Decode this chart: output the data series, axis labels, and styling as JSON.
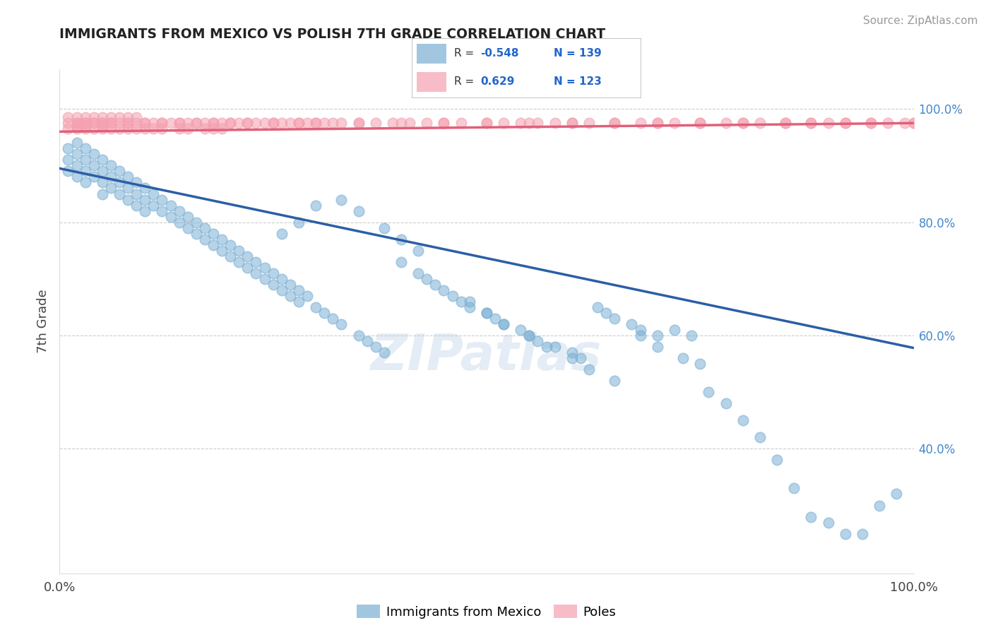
{
  "title": "IMMIGRANTS FROM MEXICO VS POLISH 7TH GRADE CORRELATION CHART",
  "source_text": "Source: ZipAtlas.com",
  "ylabel": "7th Grade",
  "xlim": [
    0.0,
    1.0
  ],
  "ylim": [
    0.18,
    1.07
  ],
  "blue_R": -0.548,
  "blue_N": 139,
  "pink_R": 0.629,
  "pink_N": 123,
  "blue_color": "#7BAFD4",
  "pink_color": "#F4A0B0",
  "blue_line_color": "#2B5EA7",
  "pink_line_color": "#E0607A",
  "blue_label": "Immigrants from Mexico",
  "pink_label": "Poles",
  "right_yticks": [
    0.4,
    0.6,
    0.8,
    1.0
  ],
  "right_ytick_labels": [
    "40.0%",
    "60.0%",
    "80.0%",
    "100.0%"
  ],
  "blue_line_x0": 0.0,
  "blue_line_x1": 1.0,
  "blue_line_y0": 0.895,
  "blue_line_y1": 0.578,
  "pink_line_x0": 0.0,
  "pink_line_x1": 1.0,
  "pink_line_y0": 0.96,
  "pink_line_y1": 0.975,
  "watermark": "ZIPatlas",
  "background_color": "#ffffff",
  "grid_color": "#cccccc",
  "blue_scatter_x": [
    0.01,
    0.01,
    0.01,
    0.02,
    0.02,
    0.02,
    0.02,
    0.03,
    0.03,
    0.03,
    0.03,
    0.04,
    0.04,
    0.04,
    0.05,
    0.05,
    0.05,
    0.05,
    0.06,
    0.06,
    0.06,
    0.07,
    0.07,
    0.07,
    0.08,
    0.08,
    0.08,
    0.09,
    0.09,
    0.09,
    0.1,
    0.1,
    0.1,
    0.11,
    0.11,
    0.12,
    0.12,
    0.13,
    0.13,
    0.14,
    0.14,
    0.15,
    0.15,
    0.16,
    0.16,
    0.17,
    0.17,
    0.18,
    0.18,
    0.19,
    0.19,
    0.2,
    0.2,
    0.21,
    0.21,
    0.22,
    0.22,
    0.23,
    0.23,
    0.24,
    0.24,
    0.25,
    0.25,
    0.26,
    0.26,
    0.27,
    0.27,
    0.28,
    0.28,
    0.29,
    0.3,
    0.31,
    0.32,
    0.33,
    0.35,
    0.36,
    0.37,
    0.38,
    0.4,
    0.42,
    0.43,
    0.44,
    0.46,
    0.47,
    0.48,
    0.5,
    0.51,
    0.52,
    0.54,
    0.55,
    0.56,
    0.58,
    0.6,
    0.61,
    0.63,
    0.64,
    0.65,
    0.67,
    0.68,
    0.7,
    0.72,
    0.74,
    0.75,
    0.76,
    0.78,
    0.8,
    0.82,
    0.84,
    0.86,
    0.88,
    0.9,
    0.92,
    0.94,
    0.96,
    0.98,
    0.45,
    0.48,
    0.5,
    0.52,
    0.55,
    0.57,
    0.6,
    0.62,
    0.65,
    0.68,
    0.7,
    0.73,
    0.38,
    0.4,
    0.42,
    0.35,
    0.33,
    0.3,
    0.28,
    0.26
  ],
  "blue_scatter_y": [
    0.93,
    0.91,
    0.89,
    0.94,
    0.92,
    0.9,
    0.88,
    0.93,
    0.91,
    0.89,
    0.87,
    0.92,
    0.9,
    0.88,
    0.91,
    0.89,
    0.87,
    0.85,
    0.9,
    0.88,
    0.86,
    0.89,
    0.87,
    0.85,
    0.88,
    0.86,
    0.84,
    0.87,
    0.85,
    0.83,
    0.86,
    0.84,
    0.82,
    0.85,
    0.83,
    0.84,
    0.82,
    0.83,
    0.81,
    0.82,
    0.8,
    0.81,
    0.79,
    0.8,
    0.78,
    0.79,
    0.77,
    0.78,
    0.76,
    0.77,
    0.75,
    0.76,
    0.74,
    0.75,
    0.73,
    0.74,
    0.72,
    0.73,
    0.71,
    0.72,
    0.7,
    0.71,
    0.69,
    0.7,
    0.68,
    0.69,
    0.67,
    0.68,
    0.66,
    0.67,
    0.65,
    0.64,
    0.63,
    0.62,
    0.6,
    0.59,
    0.58,
    0.57,
    0.73,
    0.71,
    0.7,
    0.69,
    0.67,
    0.66,
    0.65,
    0.64,
    0.63,
    0.62,
    0.61,
    0.6,
    0.59,
    0.58,
    0.57,
    0.56,
    0.65,
    0.64,
    0.63,
    0.62,
    0.61,
    0.6,
    0.61,
    0.6,
    0.55,
    0.5,
    0.48,
    0.45,
    0.42,
    0.38,
    0.33,
    0.28,
    0.27,
    0.25,
    0.25,
    0.3,
    0.32,
    0.68,
    0.66,
    0.64,
    0.62,
    0.6,
    0.58,
    0.56,
    0.54,
    0.52,
    0.6,
    0.58,
    0.56,
    0.79,
    0.77,
    0.75,
    0.82,
    0.84,
    0.83,
    0.8,
    0.78
  ],
  "pink_scatter_x": [
    0.01,
    0.01,
    0.01,
    0.02,
    0.02,
    0.02,
    0.02,
    0.03,
    0.03,
    0.03,
    0.03,
    0.04,
    0.04,
    0.04,
    0.05,
    0.05,
    0.05,
    0.05,
    0.06,
    0.06,
    0.06,
    0.07,
    0.07,
    0.07,
    0.08,
    0.08,
    0.08,
    0.09,
    0.09,
    0.09,
    0.1,
    0.1,
    0.11,
    0.11,
    0.12,
    0.12,
    0.13,
    0.14,
    0.14,
    0.15,
    0.15,
    0.16,
    0.17,
    0.17,
    0.18,
    0.18,
    0.19,
    0.19,
    0.2,
    0.21,
    0.22,
    0.23,
    0.24,
    0.25,
    0.26,
    0.27,
    0.28,
    0.29,
    0.3,
    0.31,
    0.33,
    0.35,
    0.37,
    0.39,
    0.41,
    0.43,
    0.45,
    0.47,
    0.5,
    0.52,
    0.54,
    0.56,
    0.58,
    0.6,
    0.62,
    0.65,
    0.68,
    0.7,
    0.72,
    0.75,
    0.78,
    0.8,
    0.82,
    0.85,
    0.88,
    0.9,
    0.92,
    0.95,
    0.97,
    0.99,
    1.0,
    1.0,
    0.95,
    0.92,
    0.88,
    0.85,
    0.8,
    0.75,
    0.7,
    0.65,
    0.6,
    0.55,
    0.5,
    0.45,
    0.4,
    0.35,
    0.32,
    0.3,
    0.28,
    0.25,
    0.22,
    0.2,
    0.18,
    0.16,
    0.14,
    0.12,
    0.1,
    0.08,
    0.06,
    0.05,
    0.04,
    0.03,
    0.02
  ],
  "pink_scatter_y": [
    0.975,
    0.965,
    0.985,
    0.975,
    0.965,
    0.985,
    0.97,
    0.975,
    0.965,
    0.985,
    0.97,
    0.975,
    0.965,
    0.985,
    0.975,
    0.965,
    0.985,
    0.97,
    0.975,
    0.965,
    0.985,
    0.975,
    0.965,
    0.985,
    0.975,
    0.965,
    0.985,
    0.975,
    0.965,
    0.985,
    0.975,
    0.965,
    0.975,
    0.965,
    0.975,
    0.965,
    0.975,
    0.975,
    0.965,
    0.975,
    0.965,
    0.975,
    0.975,
    0.965,
    0.975,
    0.965,
    0.975,
    0.965,
    0.975,
    0.975,
    0.975,
    0.975,
    0.975,
    0.975,
    0.975,
    0.975,
    0.975,
    0.975,
    0.975,
    0.975,
    0.975,
    0.975,
    0.975,
    0.975,
    0.975,
    0.975,
    0.975,
    0.975,
    0.975,
    0.975,
    0.975,
    0.975,
    0.975,
    0.975,
    0.975,
    0.975,
    0.975,
    0.975,
    0.975,
    0.975,
    0.975,
    0.975,
    0.975,
    0.975,
    0.975,
    0.975,
    0.975,
    0.975,
    0.975,
    0.975,
    0.975,
    0.975,
    0.975,
    0.975,
    0.975,
    0.975,
    0.975,
    0.975,
    0.975,
    0.975,
    0.975,
    0.975,
    0.975,
    0.975,
    0.975,
    0.975,
    0.975,
    0.975,
    0.975,
    0.975,
    0.975,
    0.975,
    0.975,
    0.975,
    0.975,
    0.975,
    0.975,
    0.975,
    0.975,
    0.975,
    0.975,
    0.975,
    0.975
  ]
}
